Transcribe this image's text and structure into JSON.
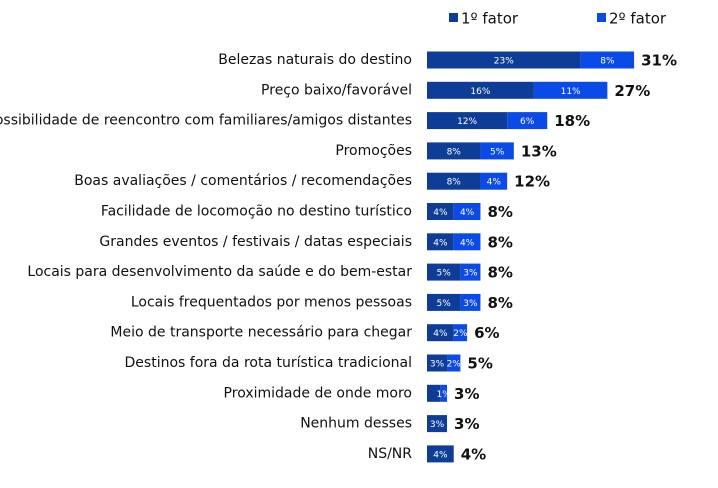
{
  "chart_data": {
    "type": "stacked-barh",
    "categories": [
      "Belezas naturais do destino",
      "Preço baixo/favorável",
      "Possibilidade de reencontro com familiares/amigos distantes",
      "Promoções",
      "Boas avaliações / comentários / recomendações",
      "Facilidade de locomoção no destino turístico",
      "Grandes eventos / festivais / datas especiais",
      "Locais para desenvolvimento da saúde e do bem-estar",
      "Locais frequentados por menos pessoas",
      "Meio de transporte necessário para chegar",
      "Destinos fora da rota turística tradicional",
      "Proximidade de onde moro",
      "Nenhum desses",
      "NS/NR"
    ],
    "series": [
      {
        "name": "1º fator",
        "color": "#0d3d96",
        "values": [
          23,
          16,
          12,
          8,
          8,
          4,
          4,
          5,
          5,
          4,
          3,
          2,
          3,
          4
        ],
        "value_labels": [
          "23%",
          "16%",
          "12%",
          "8%",
          "8%",
          "4%",
          "4%",
          "5%",
          "5%",
          "4%",
          "3%",
          null,
          "3%",
          "4%"
        ]
      },
      {
        "name": "2º fator",
        "color": "#0a4ae6",
        "values": [
          8,
          11,
          6,
          5,
          4,
          4,
          4,
          3,
          3,
          2,
          2,
          1,
          null,
          null
        ],
        "value_labels": [
          "8%",
          "11%",
          "6%",
          "5%",
          "4%",
          "4%",
          "4%",
          "3%",
          "3%",
          "2%",
          "2%",
          "1%",
          null,
          null
        ]
      }
    ],
    "totals": [
      31,
      27,
      18,
      13,
      12,
      8,
      8,
      8,
      8,
      6,
      5,
      3,
      3,
      4
    ],
    "total_labels": [
      "31%",
      "27%",
      "18%",
      "13%",
      "12%",
      "8%",
      "8%",
      "8%",
      "8%",
      "6%",
      "5%",
      "3%",
      "3%",
      "4%"
    ],
    "legend": "top-right"
  }
}
